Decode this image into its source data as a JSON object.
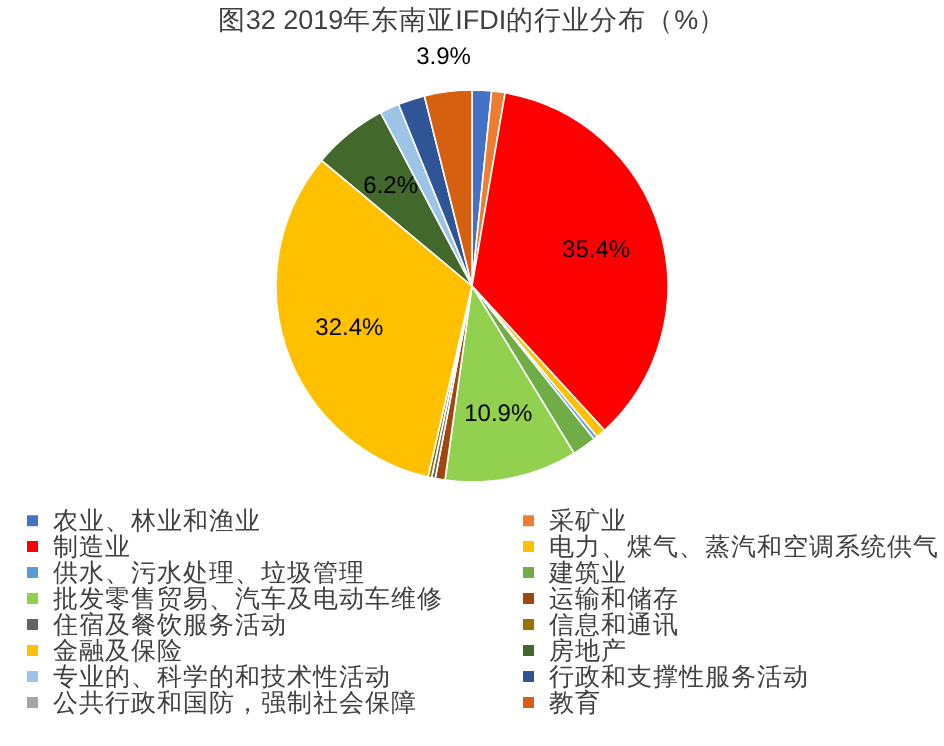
{
  "chart_data": {
    "type": "pie",
    "title": "图32 2019年东南亚IFDI的行业分布（%）",
    "categories": [
      "农业、林业和渔业",
      "采矿业",
      "制造业",
      "电力、煤气、蒸汽和空调系统供气",
      "供水、污水处理、垃圾管理",
      "建筑业",
      "批发零售贸易、汽车及电动车维修",
      "运输和储存",
      "住宿及餐饮服务活动",
      "信息和通讯",
      "金融及保险",
      "房地产",
      "专业的、科学的和技术性活动",
      "行政和支撑性服务活动",
      "公共行政和国防，强制社会保障",
      "教育"
    ],
    "values": [
      1.6,
      1.1,
      35.4,
      0.8,
      0.3,
      2.0,
      10.9,
      0.8,
      0.3,
      0.3,
      32.4,
      6.2,
      1.6,
      2.2,
      null,
      3.9
    ],
    "colors": [
      "#4472c4",
      "#ed7d31",
      "#ff0000",
      "#ffc000",
      "#5b9bd5",
      "#70ad47",
      "#92d050",
      "#9e480e",
      "#636363",
      "#997300",
      "#ffc000",
      "#43682b",
      "#9dc3e6",
      "#2f5597",
      "#a5a5a5",
      "#d46010"
    ],
    "value_labels": [
      null,
      null,
      "35.4%",
      null,
      null,
      null,
      "10.9%",
      null,
      null,
      null,
      "32.4%",
      "6.2%",
      null,
      null,
      null,
      "3.9%"
    ],
    "legend": "bottom"
  }
}
